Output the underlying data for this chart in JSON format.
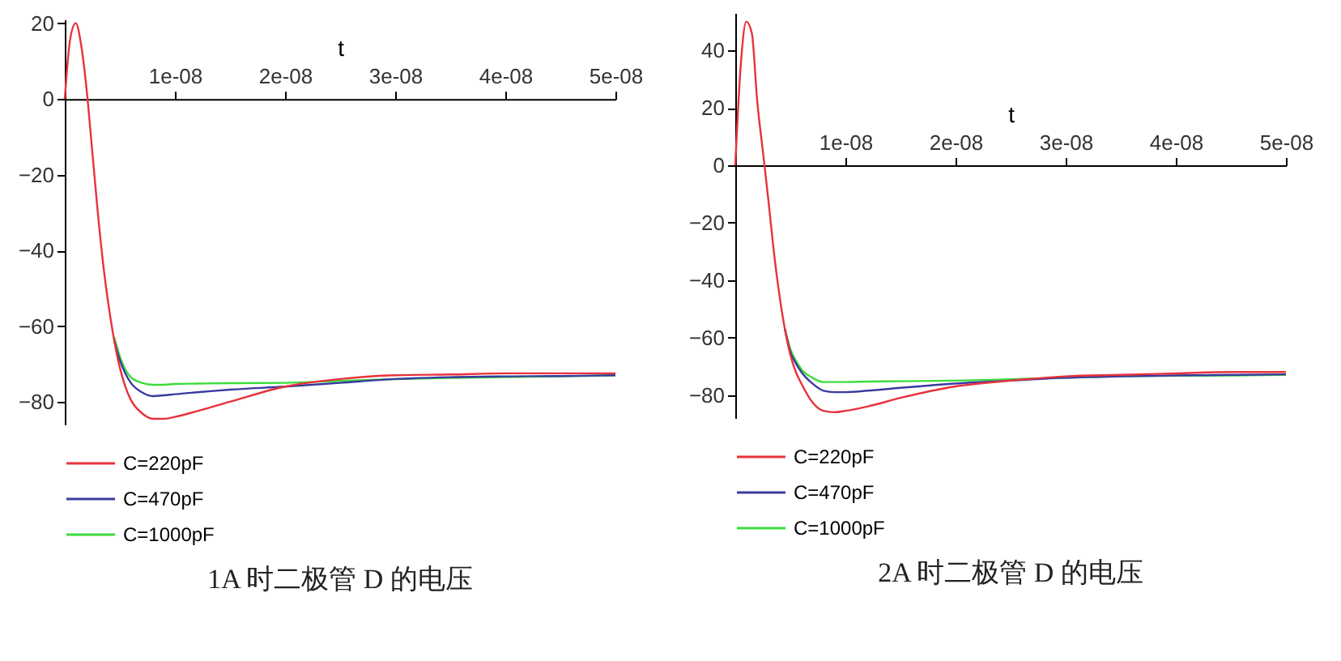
{
  "chart_data": [
    {
      "type": "line",
      "xlabel": "t",
      "annotations": [
        "1A 时二极管 D 的电压"
      ],
      "legend": "bottom",
      "x": [
        0,
        5e-10,
        1e-09,
        1.5e-09,
        2e-09,
        2.5e-09,
        3e-09,
        3.5e-09,
        4e-09,
        4.5e-09,
        5e-09,
        5.5e-09,
        6e-09,
        7e-09,
        8e-09,
        9e-09,
        1e-08,
        1.2e-08,
        1.5e-08,
        2e-08,
        2.5e-08,
        3e-08,
        3.5e-08,
        4e-08,
        4.5e-08,
        5e-08
      ],
      "xlim": [
        0,
        5e-08
      ],
      "xticks": [
        {
          "value": 1e-08,
          "label": "1e-08"
        },
        {
          "value": 2e-08,
          "label": "2e-08"
        },
        {
          "value": 3e-08,
          "label": "3e-08"
        },
        {
          "value": 4e-08,
          "label": "4e-08"
        },
        {
          "value": 5e-08,
          "label": "5e-08"
        }
      ],
      "ylim": [
        -86,
        21
      ],
      "yticks": [
        -80,
        -60,
        -40,
        -20,
        0,
        20
      ],
      "series": [
        {
          "name": "C=220pF",
          "color": "#e8323c",
          "values": [
            0,
            16,
            20,
            14,
            2,
            -14,
            -30,
            -44,
            -55,
            -64,
            -71,
            -76,
            -79.5,
            -83,
            -84.5,
            -84.5,
            -84,
            -82.5,
            -80,
            -76,
            -74,
            -73,
            -72.8,
            -72.5,
            -72.5,
            -72.5
          ]
        },
        {
          "name": "C=470pF",
          "color": "#3a3aa0",
          "values": [
            null,
            null,
            null,
            null,
            null,
            null,
            null,
            null,
            null,
            -64,
            -69,
            -72.5,
            -75,
            -77.5,
            -78.5,
            -78.3,
            -78,
            -77.5,
            -76.8,
            -76,
            -75,
            -74,
            -73.5,
            -73.3,
            -73.2,
            -73
          ]
        },
        {
          "name": "C=1000pF",
          "color": "#3adc3a",
          "values": [
            null,
            null,
            null,
            null,
            null,
            null,
            null,
            null,
            null,
            -63,
            -68,
            -71.5,
            -73.5,
            -75,
            -75.5,
            -75.5,
            -75.3,
            -75.2,
            -75.1,
            -75,
            -74.5,
            -74,
            -73.7,
            -73.5,
            -73.3,
            -73
          ]
        }
      ]
    },
    {
      "type": "line",
      "xlabel": "t",
      "annotations": [
        "2A 时二极管 D 的电压"
      ],
      "legend": "bottom",
      "x": [
        0,
        5e-10,
        1e-09,
        1.5e-09,
        2e-09,
        2.5e-09,
        3e-09,
        3.5e-09,
        4e-09,
        4.5e-09,
        5e-09,
        5.5e-09,
        6e-09,
        7e-09,
        8e-09,
        9e-09,
        1e-08,
        1.2e-08,
        1.5e-08,
        2e-08,
        2.5e-08,
        3e-08,
        3.5e-08,
        4e-08,
        4.5e-08,
        5e-08
      ],
      "xlim": [
        0,
        5e-08
      ],
      "xticks": [
        {
          "value": 1e-08,
          "label": "1e-08"
        },
        {
          "value": 2e-08,
          "label": "2e-08"
        },
        {
          "value": 3e-08,
          "label": "3e-08"
        },
        {
          "value": 4e-08,
          "label": "4e-08"
        },
        {
          "value": 5e-08,
          "label": "5e-08"
        }
      ],
      "ylim": [
        -88,
        53
      ],
      "yticks": [
        -80,
        -60,
        -40,
        -20,
        0,
        20,
        40
      ],
      "series": [
        {
          "name": "C=220pF",
          "color": "#e8323c",
          "values": [
            0,
            35,
            50,
            46,
            22,
            5,
            -12,
            -30,
            -45,
            -57,
            -66,
            -72,
            -76,
            -82.5,
            -85.5,
            -86,
            -85.5,
            -84,
            -81,
            -77,
            -75,
            -73.5,
            -73,
            -72.5,
            -72,
            -72
          ]
        },
        {
          "name": "C=470pF",
          "color": "#3a3aa0",
          "values": [
            null,
            null,
            null,
            null,
            null,
            null,
            null,
            null,
            null,
            -57,
            -65,
            -69,
            -72,
            -76,
            -78.5,
            -79,
            -79,
            -78.5,
            -77.5,
            -76,
            -75,
            -74,
            -73.5,
            -73.2,
            -73,
            -72.8
          ]
        },
        {
          "name": "C=1000pF",
          "color": "#3adc3a",
          "values": [
            null,
            null,
            null,
            null,
            null,
            null,
            null,
            null,
            null,
            -57,
            -64,
            -68,
            -71,
            -74,
            -75.5,
            -75.5,
            -75.5,
            -75.3,
            -75.2,
            -75,
            -74.5,
            -74,
            -73.5,
            -73.3,
            -73.2,
            -73
          ]
        }
      ]
    }
  ]
}
